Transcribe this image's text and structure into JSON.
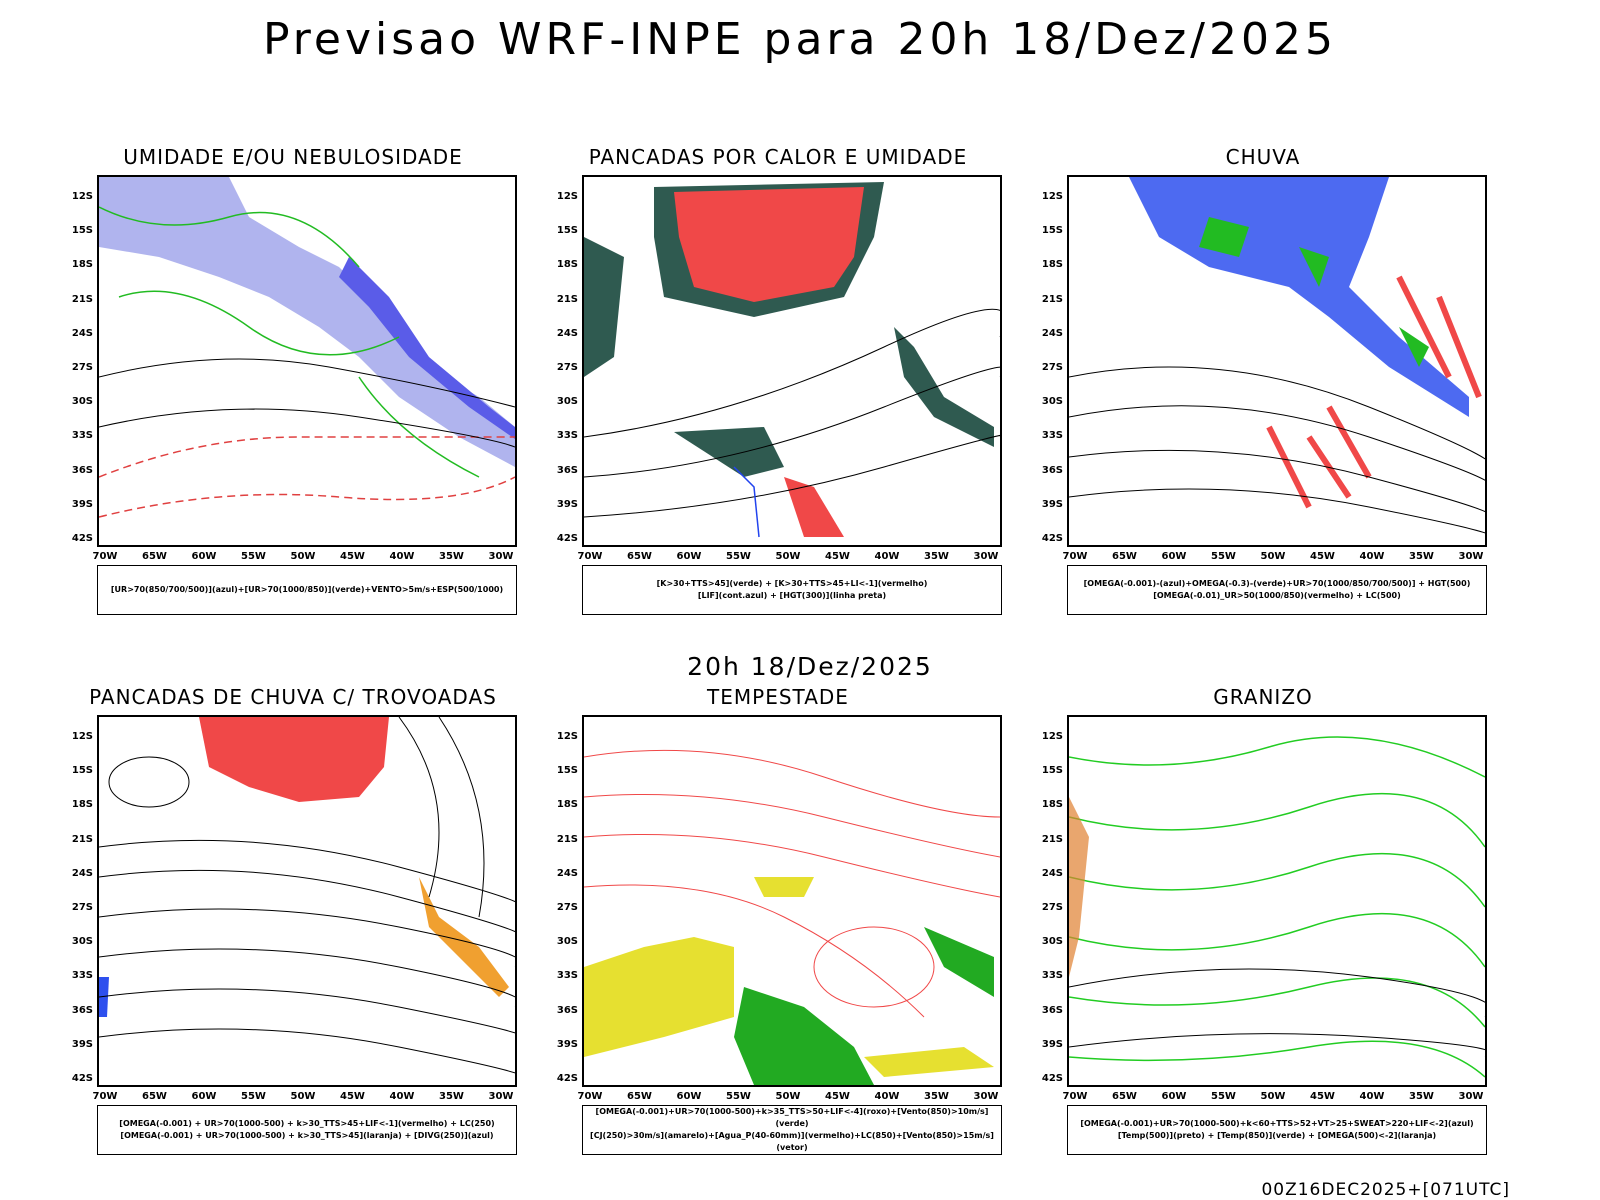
{
  "header": {
    "title": "Previsao WRF-INPE  para 20h 18/Dez/2025"
  },
  "middle": {
    "subtitle": "20h 18/Dez/2025"
  },
  "footer": {
    "stamp": "00Z16DEC2025+[071UTC]"
  },
  "axes": {
    "lat_labels": [
      "12S",
      "15S",
      "18S",
      "21S",
      "24S",
      "27S",
      "30S",
      "33S",
      "36S",
      "39S",
      "42S"
    ],
    "lon_labels": [
      "70W",
      "65W",
      "60W",
      "55W",
      "50W",
      "45W",
      "40W",
      "35W",
      "30W"
    ]
  },
  "panels": [
    {
      "title": "UMIDADE E/OU NEBULOSIDADE",
      "legend": [
        "[UR>70(850/700/500)](azul)+[UR>70(1000/850)](verde)+VENTO>5m/s+ESP(500/1000)"
      ]
    },
    {
      "title": "PANCADAS POR CALOR E UMIDADE",
      "legend": [
        "[K>30+TTS>45](verde) + [K>30+TTS>45+LI<-1](vermelho)",
        "[LIF](cont.azul) + [HGT(300)](linha preta)"
      ]
    },
    {
      "title": "CHUVA",
      "legend": [
        "[OMEGA(-0.001)-(azul)+OMEGA(-0.3)-(verde)+UR>70(1000/850/700/500)] + HGT(500)",
        "[OMEGA(-0.01)_UR>50(1000/850)(vermelho) + LC(500)"
      ]
    },
    {
      "title": "PANCADAS DE CHUVA C/ TROVOADAS",
      "legend": [
        "[OMEGA(-0.001) + UR>70(1000-500) + k>30_TTS>45+LIF<-1](vermelho) + LC(250)",
        "[OMEGA(-0.001) + UR>70(1000-500) + k>30_TTS>45](laranja) + [DIVG(250)](azul)"
      ]
    },
    {
      "title": "TEMPESTADE",
      "legend": [
        "[OMEGA(-0.001)+UR>70(1000-500)+k>35_TTS>50+LIF<-4](roxo)+[Vento(850)>10m/s](verde)",
        "[CJ(250)>30m/s](amarelo)+[Agua_P(40-60mm)](vermelho)+LC(850)+[Vento(850)>15m/s](vetor)"
      ]
    },
    {
      "title": "GRANIZO",
      "legend": [
        "[OMEGA(-0.001)+UR>70(1000-500)+k<60+TTS>52+VT>25+SWEAT>220+LIF<-2](azul)",
        "[Temp(500)](preto) + [Temp(850)](verde) + [OMEGA(500)<-2](laranja)"
      ]
    }
  ]
}
